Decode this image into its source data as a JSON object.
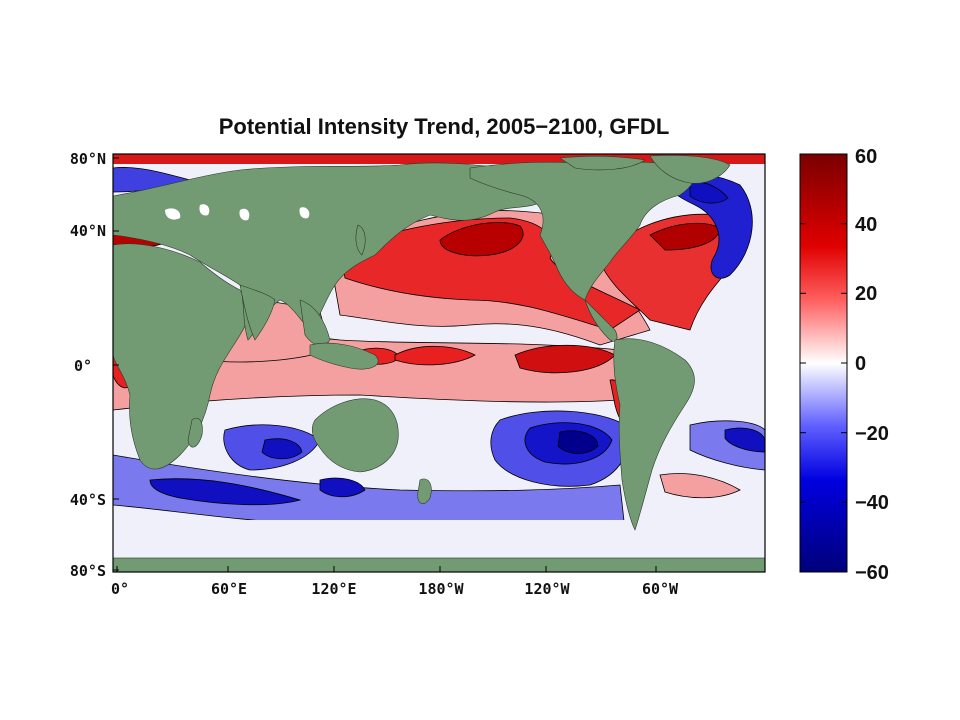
{
  "title": "Potential Intensity Trend, 2005−2100, GFDL",
  "y_ticks": [
    "80°N",
    "40°N",
    "0°",
    "40°S",
    "80°S"
  ],
  "x_ticks": [
    "0°",
    "60°E",
    "120°E",
    "180°W",
    "120°W",
    "60°W"
  ],
  "colorbar": {
    "ticks": [
      "60",
      "40",
      "20",
      "0",
      "−20",
      "−40",
      "−60"
    ],
    "min": -60,
    "max": 60,
    "colors": {
      "high": "#7a0000",
      "mid_high": "#ff2020",
      "zero": "#ffffff",
      "mid_low": "#4040ff",
      "low": "#00007a"
    }
  },
  "colors": {
    "land": "#739b73",
    "strong_warm": "#c80000",
    "warm": "#e83030",
    "light_warm": "#f5a0a0",
    "neutral": "#f0f0fa",
    "light_cool": "#8080f0",
    "cool": "#1010d0",
    "strong_cool": "#00008c"
  }
}
